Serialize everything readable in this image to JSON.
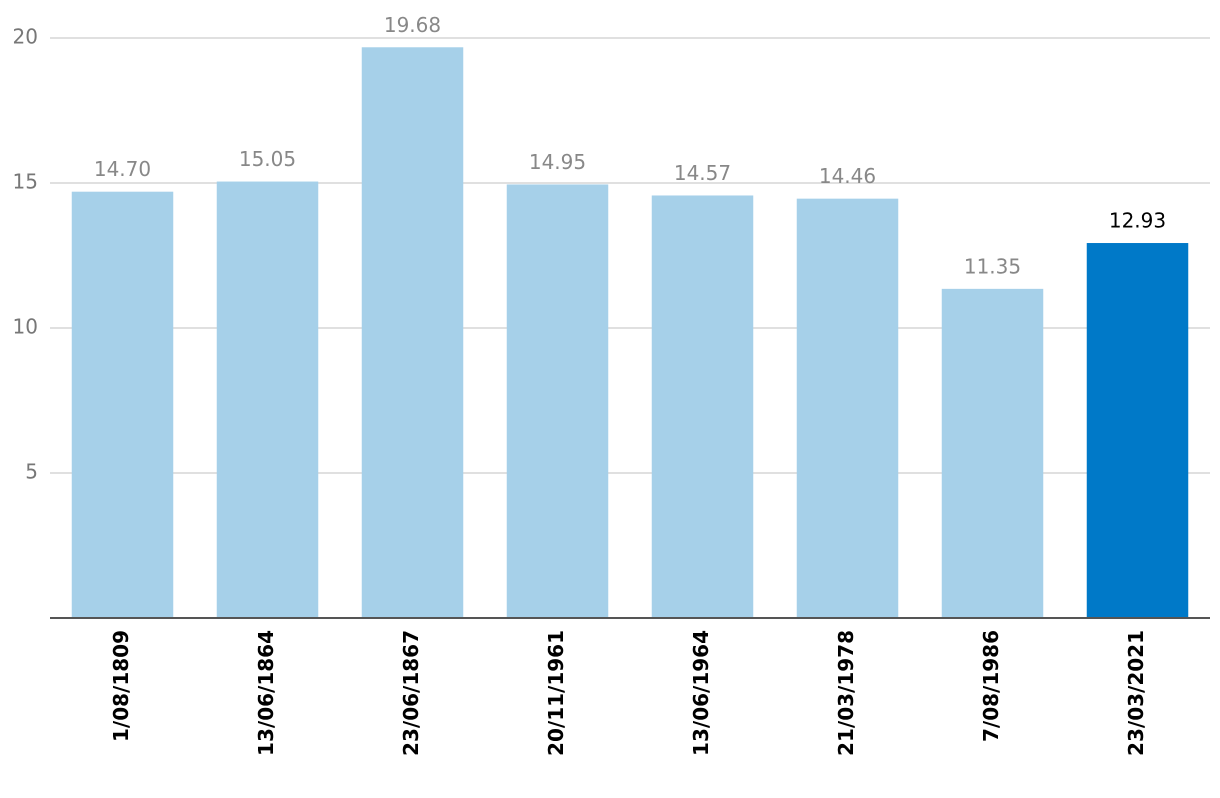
{
  "chart_data": {
    "type": "bar",
    "categories": [
      "1/08/1809",
      "13/06/1864",
      "23/06/1867",
      "20/11/1961",
      "13/06/1964",
      "21/03/1978",
      "7/08/1986",
      "23/03/2021"
    ],
    "values": [
      14.7,
      15.05,
      19.68,
      14.95,
      14.57,
      14.46,
      11.35,
      12.93
    ],
    "value_labels": [
      "14.70",
      "15.05",
      "19.68",
      "14.95",
      "14.57",
      "14.46",
      "11.35",
      "12.93"
    ],
    "colors": [
      "#a6d0e9",
      "#a6d0e9",
      "#a6d0e9",
      "#a6d0e9",
      "#a6d0e9",
      "#a6d0e9",
      "#a6d0e9",
      "#0079c8"
    ],
    "value_label_colors": [
      "#888888",
      "#888888",
      "#888888",
      "#888888",
      "#888888",
      "#888888",
      "#888888",
      "#000000"
    ],
    "ylim": [
      0,
      20
    ],
    "yticks": [
      5,
      10,
      15,
      20
    ],
    "grid": true
  }
}
